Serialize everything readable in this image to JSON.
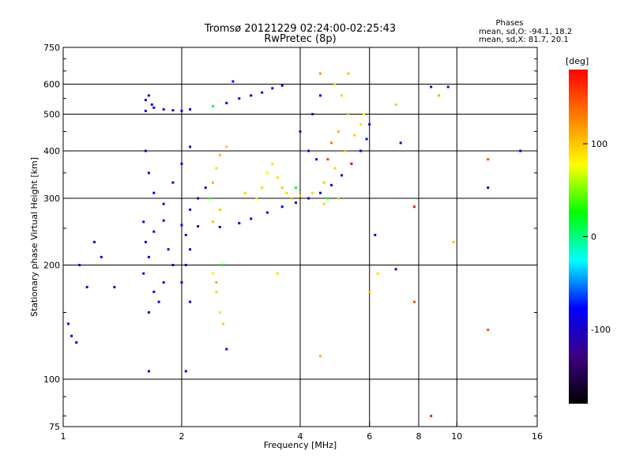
{
  "chart_data": {
    "type": "scatter",
    "title": "Tromsø 20121229 02:24:00-02:25:43",
    "subtitle": "RwPretec (8p)",
    "xlabel": "Frequency [MHz]",
    "ylabel": "Stationary phase Virtual Height [km]",
    "x_scale": "log",
    "y_scale": "log",
    "xlim": [
      1,
      16
    ],
    "ylim": [
      75,
      750
    ],
    "x_ticks": [
      1,
      2,
      4,
      6,
      8,
      10,
      16
    ],
    "y_ticks": [
      75,
      100,
      200,
      300,
      400,
      500,
      600,
      750
    ],
    "grid": true,
    "stats_title": "Phases",
    "stats_lines": [
      "mean, sd,O: -94.1, 18.2",
      "mean, sd,X:  81.7, 20.1"
    ],
    "colorbar": {
      "label": "[deg]",
      "range": [
        -180,
        180
      ],
      "ticks": [
        100,
        0,
        -100
      ],
      "colormap": [
        "#000000",
        "#3c0080",
        "#0000ff",
        "#00ffff",
        "#00ff00",
        "#ffff00",
        "#ff8000",
        "#ff0000"
      ]
    },
    "series": [
      {
        "points": [
          [
            1.62,
            510,
            -100
          ],
          [
            1.7,
            520,
            -95
          ],
          [
            1.8,
            515,
            -105
          ],
          [
            1.9,
            512,
            -98
          ],
          [
            2.0,
            510,
            -92
          ],
          [
            2.1,
            515,
            -100
          ],
          [
            1.65,
            560,
            -96
          ],
          [
            1.62,
            545,
            -104
          ],
          [
            1.68,
            530,
            -100
          ],
          [
            2.4,
            525,
            10
          ],
          [
            2.6,
            535,
            -85
          ],
          [
            2.8,
            550,
            -90
          ],
          [
            3.0,
            560,
            -88
          ],
          [
            3.2,
            570,
            -95
          ],
          [
            3.4,
            585,
            -92
          ],
          [
            3.6,
            595,
            -98
          ],
          [
            2.7,
            610,
            -80
          ],
          [
            1.6,
            260,
            -100
          ],
          [
            1.8,
            262,
            -98
          ],
          [
            2.0,
            255,
            -105
          ],
          [
            2.2,
            253,
            -100
          ],
          [
            2.5,
            252,
            -95
          ],
          [
            2.8,
            258,
            -88
          ],
          [
            3.0,
            265,
            -92
          ],
          [
            3.3,
            275,
            -90
          ],
          [
            3.6,
            285,
            -95
          ],
          [
            3.9,
            292,
            -100
          ],
          [
            4.2,
            300,
            -96
          ],
          [
            4.5,
            310,
            -94
          ],
          [
            4.8,
            325,
            -100
          ],
          [
            5.1,
            345,
            -95
          ],
          [
            5.4,
            370,
            -98
          ],
          [
            5.7,
            400,
            -100
          ],
          [
            5.9,
            430,
            -92
          ],
          [
            6.0,
            470,
            -90
          ],
          [
            1.62,
            230,
            -95
          ],
          [
            1.65,
            210,
            -100
          ],
          [
            1.6,
            190,
            -98
          ],
          [
            1.7,
            170,
            -105
          ],
          [
            1.65,
            150,
            -100
          ],
          [
            1.75,
            160,
            -92
          ],
          [
            1.8,
            180,
            -96
          ],
          [
            1.9,
            200,
            -100
          ],
          [
            1.85,
            220,
            -98
          ],
          [
            1.7,
            245,
            -102
          ],
          [
            2.05,
            200,
            -100
          ],
          [
            2.1,
            220,
            -95
          ],
          [
            2.0,
            180,
            -98
          ],
          [
            2.1,
            160,
            -100
          ],
          [
            2.05,
            240,
            -104
          ],
          [
            2.1,
            280,
            -96
          ],
          [
            1.62,
            400,
            -100
          ],
          [
            1.65,
            350,
            -95
          ],
          [
            1.7,
            310,
            -100
          ],
          [
            1.8,
            290,
            -96
          ],
          [
            1.9,
            330,
            -100
          ],
          [
            2.0,
            370,
            -92
          ],
          [
            2.1,
            410,
            -98
          ],
          [
            2.2,
            300,
            -90
          ],
          [
            2.3,
            320,
            -86
          ],
          [
            4.0,
            450,
            -100
          ],
          [
            4.3,
            500,
            -95
          ],
          [
            4.5,
            560,
            -92
          ],
          [
            4.2,
            400,
            -96
          ],
          [
            4.4,
            380,
            -90
          ],
          [
            1.05,
            130,
            -100
          ],
          [
            1.08,
            125,
            -98
          ],
          [
            1.03,
            140,
            -95
          ],
          [
            1.1,
            200,
            -100
          ],
          [
            1.15,
            175,
            -96
          ],
          [
            1.2,
            230,
            -95
          ],
          [
            1.25,
            210,
            -100
          ],
          [
            1.35,
            175,
            -98
          ],
          [
            1.65,
            105,
            -100
          ],
          [
            2.05,
            105,
            -96
          ],
          [
            2.6,
            120,
            -90
          ],
          [
            6.2,
            240,
            -100
          ],
          [
            7.0,
            195,
            -96
          ],
          [
            7.2,
            420,
            -92
          ],
          [
            9.5,
            590,
            -100
          ],
          [
            12.0,
            320,
            -95
          ],
          [
            14.5,
            400,
            -98
          ],
          [
            8.6,
            590,
            -104
          ]
        ]
      },
      {
        "points": [
          [
            2.4,
            260,
            105
          ],
          [
            2.5,
            280,
            100
          ],
          [
            2.4,
            330,
            110
          ],
          [
            2.45,
            360,
            95
          ],
          [
            2.5,
            390,
            105
          ],
          [
            2.6,
            410,
            100
          ],
          [
            2.4,
            190,
            70
          ],
          [
            2.45,
            170,
            95
          ],
          [
            2.5,
            150,
            90
          ],
          [
            2.55,
            140,
            100
          ],
          [
            2.45,
            180,
            110
          ],
          [
            2.9,
            310,
            95
          ],
          [
            3.1,
            300,
            90
          ],
          [
            3.2,
            320,
            60
          ],
          [
            3.3,
            350,
            80
          ],
          [
            3.4,
            370,
            90
          ],
          [
            3.5,
            340,
            95
          ],
          [
            3.6,
            320,
            100
          ],
          [
            3.7,
            310,
            95
          ],
          [
            3.8,
            300,
            105
          ],
          [
            4.0,
            305,
            100
          ],
          [
            4.3,
            310,
            95
          ],
          [
            4.6,
            330,
            100
          ],
          [
            4.9,
            360,
            95
          ],
          [
            5.2,
            400,
            105
          ],
          [
            5.5,
            440,
            100
          ],
          [
            5.7,
            470,
            90
          ],
          [
            5.8,
            500,
            80
          ],
          [
            4.8,
            420,
            130
          ],
          [
            5.0,
            450,
            110
          ],
          [
            5.3,
            500,
            100
          ],
          [
            5.1,
            560,
            95
          ],
          [
            4.9,
            600,
            90
          ],
          [
            5.3,
            640,
            105
          ],
          [
            4.5,
            640,
            120
          ],
          [
            4.7,
            380,
            160
          ],
          [
            5.4,
            370,
            170
          ],
          [
            4.6,
            290,
            95
          ],
          [
            5.0,
            300,
            100
          ],
          [
            3.5,
            190,
            90
          ],
          [
            4.5,
            115,
            110
          ],
          [
            6.0,
            170,
            100
          ],
          [
            6.3,
            190,
            95
          ],
          [
            7.0,
            530,
            100
          ],
          [
            9.0,
            560,
            110
          ],
          [
            9.8,
            230,
            100
          ],
          [
            12.0,
            380,
            150
          ],
          [
            12.0,
            135,
            150
          ],
          [
            7.8,
            160,
            150
          ],
          [
            8.6,
            80,
            170
          ],
          [
            7.8,
            285,
            170
          ],
          [
            4.7,
            300,
            30
          ],
          [
            3.9,
            320,
            20
          ],
          [
            2.35,
            300,
            40
          ],
          [
            2.55,
            200,
            20
          ]
        ]
      }
    ]
  }
}
